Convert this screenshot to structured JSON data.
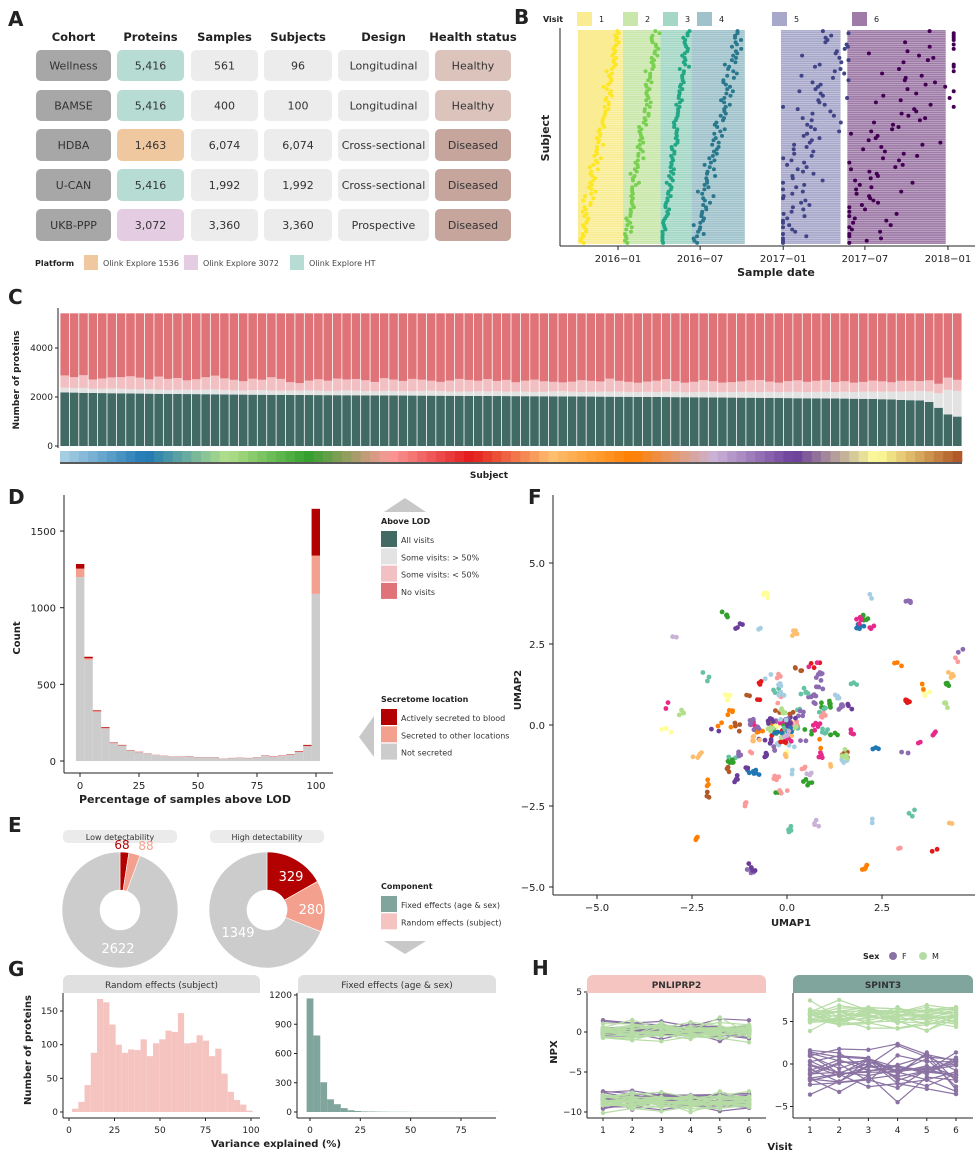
{
  "panel_labels": [
    "A",
    "B",
    "C",
    "D",
    "E",
    "F",
    "G",
    "H"
  ],
  "chart_data": [
    {
      "id": "A",
      "type": "table",
      "headers": [
        "Cohort",
        "Proteins",
        "Samples",
        "Subjects",
        "Design",
        "Health status"
      ],
      "rows": [
        {
          "cohort": "Wellness",
          "proteins": "5,416",
          "samples": "561",
          "subjects": "96",
          "design": "Longitudinal",
          "health": "Healthy",
          "platform": "Olink Explore HT"
        },
        {
          "cohort": "BAMSE",
          "proteins": "5,416",
          "samples": "400",
          "subjects": "100",
          "design": "Longitudinal",
          "health": "Healthy",
          "platform": "Olink Explore HT"
        },
        {
          "cohort": "HDBA",
          "proteins": "1,463",
          "samples": "6,074",
          "subjects": "6,074",
          "design": "Cross-sectional",
          "health": "Diseased",
          "platform": "Olink Explore 1536"
        },
        {
          "cohort": "U-CAN",
          "proteins": "5,416",
          "samples": "1,992",
          "subjects": "1,992",
          "design": "Cross-sectional",
          "health": "Diseased",
          "platform": "Olink Explore HT"
        },
        {
          "cohort": "UKB-PPP",
          "proteins": "3,072",
          "samples": "3,360",
          "subjects": "3,360",
          "design": "Prospective",
          "health": "Diseased",
          "platform": "Olink Explore 3072"
        }
      ],
      "platform_legend": {
        "title": "Platform",
        "items": [
          {
            "label": "Olink Explore 1536",
            "color": "#f0c89f"
          },
          {
            "label": "Olink Explore 3072",
            "color": "#e4cde3"
          },
          {
            "label": "Olink Explore HT",
            "color": "#b6dcd4"
          }
        ]
      },
      "colors": {
        "cohort": "#a7a7a7",
        "neutral": "#ececec",
        "Healthy": "#dcc4bd",
        "Diseased": "#c6a59c"
      }
    },
    {
      "id": "B",
      "type": "scatter",
      "legend_title": "Visit",
      "visits": [
        {
          "label": "1",
          "color": "#fde725",
          "band": "#f9ec93",
          "window": [
            "2015-10-04",
            "2016-01-12"
          ]
        },
        {
          "label": "2",
          "color": "#7ad151",
          "band": "#c9e7ab",
          "window": [
            "2016-01-12",
            "2016-04-04"
          ]
        },
        {
          "label": "3",
          "color": "#22a884",
          "band": "#a4d7c6",
          "window": [
            "2016-04-04",
            "2016-06-12"
          ]
        },
        {
          "label": "4",
          "color": "#2a788e",
          "band": "#9fc2cb",
          "window": [
            "2016-06-12",
            "2016-10-08"
          ]
        },
        {
          "label": "5",
          "color": "#414487",
          "band": "#a8a8cb",
          "window": [
            "2016-12-27",
            "2017-05-08"
          ]
        },
        {
          "label": "6",
          "color": "#440154",
          "band": "#9f7ba8",
          "window": [
            "2017-05-23",
            "2017-12-27"
          ]
        }
      ],
      "n_subjects": 96,
      "x_ticks": [
        "2016-01-01",
        "2016-07-01",
        "2017-01-01",
        "2017-07-01",
        "2018-01-01"
      ],
      "x_tick_labels": [
        "2016−01",
        "2016−07",
        "2017−01",
        "2017−07",
        "2018−01"
      ],
      "xlabel": "Sample date",
      "ylabel": "Subject"
    },
    {
      "id": "C",
      "type": "bar",
      "stacked": true,
      "total_proteins": 5416,
      "ylabel": "Number of proteins",
      "xlabel": "Subject",
      "y_ticks": [
        0,
        2000,
        4000
      ],
      "series": [
        {
          "name": "All visits",
          "color": "#416a64",
          "values": [
            2190,
            2180,
            2170,
            2165,
            2160,
            2155,
            2150,
            2145,
            2140,
            2135,
            2130,
            2128,
            2125,
            2120,
            2118,
            2115,
            2110,
            2105,
            2100,
            2098,
            2095,
            2092,
            2090,
            2088,
            2085,
            2082,
            2080,
            2078,
            2076,
            2074,
            2072,
            2070,
            2068,
            2066,
            2064,
            2062,
            2060,
            2058,
            2056,
            2054,
            2052,
            2050,
            2048,
            2046,
            2044,
            2042,
            2040,
            2038,
            2036,
            2034,
            2032,
            2030,
            2028,
            2025,
            2022,
            2020,
            2018,
            2015,
            2012,
            2010,
            2008,
            2005,
            2002,
            2000,
            1998,
            1995,
            1992,
            1990,
            1985,
            1980,
            1978,
            1975,
            1972,
            1970,
            1965,
            1960,
            1958,
            1955,
            1950,
            1948,
            1945,
            1942,
            1940,
            1935,
            1930,
            1925,
            1920,
            1910,
            1900,
            1880,
            1870,
            1860,
            1800,
            1560,
            1290,
            1200
          ]
        },
        {
          "name": "Some visits: > 50%",
          "color": "#e3e3e3",
          "values": [
            190,
            180,
            200,
            170,
            175,
            185,
            190,
            180,
            170,
            185,
            175,
            160,
            170,
            180,
            175,
            190,
            200,
            185,
            170,
            165,
            180,
            190,
            175,
            170,
            180,
            175,
            190,
            185,
            170,
            180,
            195,
            185,
            175,
            170,
            185,
            180,
            175,
            180,
            190,
            200,
            185,
            175,
            170,
            180,
            190,
            185,
            195,
            180,
            185,
            190,
            175,
            180,
            200,
            210,
            195,
            185,
            190,
            200,
            205,
            210,
            200,
            195,
            210,
            205,
            220,
            215,
            200,
            210,
            225,
            215,
            230,
            220,
            235,
            240,
            230,
            250,
            245,
            255,
            260,
            250,
            265,
            270,
            260,
            280,
            275,
            290,
            300,
            310,
            320,
            340,
            360,
            380,
            430,
            600,
            1000,
            1050
          ]
        },
        {
          "name": "Some visits: < 50%",
          "color": "#f2c0c2",
          "values": [
            500,
            450,
            520,
            380,
            420,
            460,
            470,
            520,
            480,
            400,
            530,
            450,
            480,
            380,
            430,
            500,
            560,
            470,
            430,
            380,
            470,
            420,
            540,
            480,
            340,
            310,
            400,
            460,
            420,
            500,
            450,
            480,
            440,
            380,
            520,
            470,
            420,
            500,
            460,
            410,
            380,
            450,
            520,
            470,
            430,
            500,
            420,
            480,
            380,
            440,
            500,
            430,
            390,
            360,
            410,
            480,
            450,
            420,
            530,
            440,
            410,
            380,
            420,
            460,
            510,
            440,
            390,
            420,
            480,
            450,
            380,
            410,
            430,
            470,
            500,
            420,
            380,
            440,
            470,
            420,
            450,
            480,
            410,
            430,
            380,
            400,
            450,
            420,
            380,
            440,
            430,
            410,
            450,
            380,
            500,
            450
          ]
        },
        {
          "name": "No visits",
          "color": "#e07378"
        }
      ],
      "subject_palette": [
        "#a6cee3",
        "#1f78b4",
        "#b2df8a",
        "#33a02c",
        "#fb9a99",
        "#e31a1c",
        "#fdbf6f",
        "#ff7f00",
        "#cab2d6",
        "#6a3d9a",
        "#ffff99",
        "#b15928"
      ]
    },
    {
      "id": "D",
      "type": "bar",
      "stacked": true,
      "xlabel": "Percentage of samples above LOD",
      "ylabel": "Count",
      "x_ticks": [
        0,
        25,
        50,
        75,
        100
      ],
      "y_ticks": [
        0,
        500,
        1000,
        1500
      ],
      "bin_start": -1.72,
      "bin_width": 3.566,
      "series": [
        {
          "name": "Not secreted",
          "color": "#cccccc",
          "values": [
            1200,
            660,
            320,
            212,
            115,
            100,
            66,
            57,
            48,
            38,
            33,
            28,
            28,
            30,
            23,
            23,
            23,
            13,
            18,
            20,
            18,
            23,
            32,
            27,
            32,
            41,
            60,
            95,
            1090
          ]
        },
        {
          "name": "Secreted to other locations",
          "color": "#f4a08f",
          "values": [
            55,
            10,
            5,
            3,
            2,
            2,
            2,
            1,
            1,
            1,
            1,
            1,
            1,
            1,
            1,
            1,
            1,
            1,
            1,
            1,
            1,
            1,
            1,
            1,
            1,
            2,
            2,
            4,
            250
          ]
        },
        {
          "name": "Actively secreted to blood",
          "color": "#b30000",
          "values": [
            30,
            10,
            5,
            5,
            3,
            3,
            2,
            2,
            1,
            1,
            1,
            1,
            1,
            1,
            1,
            1,
            1,
            1,
            1,
            1,
            1,
            1,
            2,
            2,
            2,
            2,
            3,
            6,
            305
          ]
        }
      ],
      "legends": [
        {
          "title": "Above LOD",
          "items": [
            {
              "label": "All visits",
              "color": "#416a64"
            },
            {
              "label": "Some visits: > 50%",
              "color": "#e3e3e3"
            },
            {
              "label": "Some visits: < 50%",
              "color": "#f2c0c2"
            },
            {
              "label": "No visits",
              "color": "#e07378"
            }
          ]
        },
        {
          "title": "Secretome location",
          "items": [
            {
              "label": "Actively secreted to blood",
              "color": "#b30000"
            },
            {
              "label": "Secreted to other locations",
              "color": "#f4a08f"
            },
            {
              "label": "Not secreted",
              "color": "#cccccc"
            }
          ]
        },
        {
          "title": "Component",
          "items": [
            {
              "label": "Fixed effects (age & sex)",
              "color": "#7fa59c"
            },
            {
              "label": "Random effects (subject)",
              "color": "#f5c4c0"
            }
          ]
        }
      ]
    },
    {
      "id": "E",
      "type": "pie",
      "donut": true,
      "pies": [
        {
          "title": "Low detectability",
          "slices": [
            {
              "label": "68",
              "value": 68,
              "color": "#b30000"
            },
            {
              "label": "88",
              "value": 88,
              "color": "#f4a08f"
            },
            {
              "label": "2622",
              "value": 2622,
              "color": "#cccccc"
            }
          ]
        },
        {
          "title": "High detectability",
          "slices": [
            {
              "label": "329",
              "value": 329,
              "color": "#b30000"
            },
            {
              "label": "280",
              "value": 280,
              "color": "#f4a08f"
            },
            {
              "label": "1349",
              "value": 1349,
              "color": "#cccccc"
            }
          ]
        }
      ]
    },
    {
      "id": "F",
      "type": "scatter",
      "xlabel": "UMAP1",
      "ylabel": "UMAP2",
      "x_ticks": [
        -5,
        -2.5,
        0,
        2.5
      ],
      "x_tick_labels": [
        "−5.0",
        "−2.5",
        "0.0",
        "2.5"
      ],
      "y_ticks": [
        -5,
        -2.5,
        0,
        2.5,
        5
      ],
      "y_tick_labels": [
        "−5.0",
        "−2.5",
        "0.0",
        "2.5",
        "5.0"
      ],
      "xlim": [
        -5.8,
        4.9
      ],
      "ylim": [
        -5.3,
        6.7
      ],
      "palette": [
        "#1f78b4",
        "#33a02c",
        "#e31a1c",
        "#ff7f00",
        "#6a3d9a",
        "#b15928",
        "#a6cee3",
        "#b2df8a",
        "#fb9a99",
        "#fdbf6f",
        "#cab2d6",
        "#ffff99",
        "#8c6bb1",
        "#66c2a5",
        "#e7298a"
      ]
    },
    {
      "id": "G",
      "type": "bar",
      "xlabel": "Variance explained (%)",
      "ylabel": "Number of proteins",
      "facets": [
        {
          "title": "Random effects (subject)",
          "color": "#f5c4c0",
          "bin_start": 1.7,
          "bin_width": 3.42,
          "x_ticks": [
            0,
            25,
            50,
            75,
            100
          ],
          "y_ticks": [
            0,
            50,
            100,
            150
          ],
          "values": [
            5,
            15,
            40,
            88,
            168,
            163,
            130,
            100,
            88,
            93,
            92,
            108,
            83,
            102,
            108,
            121,
            119,
            147,
            102,
            103,
            114,
            106,
            83,
            94,
            57,
            30,
            18,
            11,
            2
          ]
        },
        {
          "title": "Fixed effects (age & sex)",
          "color": "#7fa59c",
          "bin_start": -1.7,
          "bin_width": 3.4,
          "x_ticks": [
            0,
            25,
            50,
            75
          ],
          "y_ticks": [
            0,
            300,
            600,
            900,
            1200
          ],
          "values": [
            1165,
            785,
            305,
            130,
            80,
            40,
            18,
            10,
            6,
            5,
            4,
            3,
            2,
            2,
            2,
            1,
            1,
            1,
            1,
            1,
            1,
            1,
            1,
            1,
            1,
            1,
            1,
            1
          ]
        }
      ]
    },
    {
      "id": "H",
      "type": "line",
      "xlabel": "Visit",
      "ylabel": "NPX",
      "legend_title": "Sex",
      "sexes": [
        {
          "label": "F",
          "color": "#8a72a3"
        },
        {
          "label": "M",
          "color": "#b6dca5"
        }
      ],
      "x_ticks": [
        1,
        2,
        3,
        4,
        5,
        6
      ],
      "facets": [
        {
          "title": "PNLIPRP2",
          "strip_color": "#f5c6c1",
          "y_ticks": [
            -10,
            -5,
            0,
            5
          ],
          "y_tick_labels": [
            "−10",
            "−5",
            "0",
            "5"
          ],
          "groups": [
            {
              "sex": "F",
              "mean": 0.4,
              "sd": 0.7
            },
            {
              "sex": "M",
              "mean": 0.2,
              "sd": 0.7
            },
            {
              "sex": "F",
              "mean": -8.5,
              "sd": 0.7
            },
            {
              "sex": "M",
              "mean": -8.6,
              "sd": 0.7
            }
          ]
        },
        {
          "title": "SPINT3",
          "strip_color": "#7fa59c",
          "y_ticks": [
            -5,
            0,
            5
          ],
          "y_tick_labels": [
            "−5",
            "0",
            "5"
          ],
          "groups": [
            {
              "sex": "M",
              "mean": 5.6,
              "sd": 1.0
            },
            {
              "sex": "F",
              "mean": -0.8,
              "sd": 1.7
            }
          ]
        }
      ]
    }
  ]
}
